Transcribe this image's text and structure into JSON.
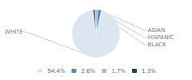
{
  "chart_data": {
    "type": "pie",
    "categories": [
      "WHITE",
      "ASIAN",
      "HISPANIC",
      "BLACK"
    ],
    "values": [
      94.4,
      2.6,
      1.7,
      1.3
    ],
    "value_labels": [
      "94.4%",
      "2.6%",
      "1.7%",
      "1.3%"
    ],
    "colors": [
      "#dce6f0",
      "#5b88b8",
      "#aab9cc",
      "#1f3864"
    ],
    "legend": "bottom"
  }
}
